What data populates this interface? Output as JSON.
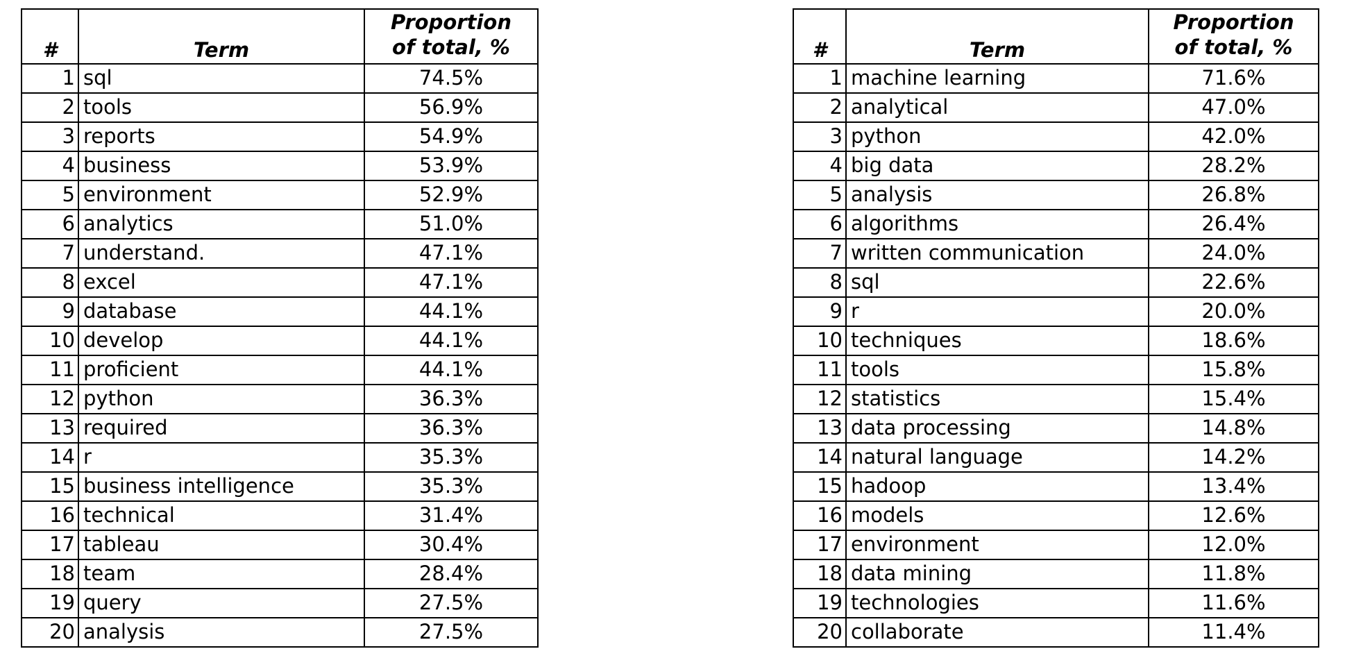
{
  "tables": [
    {
      "headers": {
        "number": "#",
        "term": "Term",
        "proportion_line1": "Proportion",
        "proportion_line2": "of total, %"
      },
      "rows": [
        {
          "num": "1",
          "term": "sql",
          "prop": "74.5%"
        },
        {
          "num": "2",
          "term": "tools",
          "prop": "56.9%"
        },
        {
          "num": "3",
          "term": "reports",
          "prop": "54.9%"
        },
        {
          "num": "4",
          "term": "business",
          "prop": "53.9%"
        },
        {
          "num": "5",
          "term": "environment",
          "prop": "52.9%"
        },
        {
          "num": "6",
          "term": "analytics",
          "prop": "51.0%"
        },
        {
          "num": "7",
          "term": "understand.",
          "prop": "47.1%"
        },
        {
          "num": "8",
          "term": "excel",
          "prop": "47.1%"
        },
        {
          "num": "9",
          "term": "database",
          "prop": "44.1%"
        },
        {
          "num": "10",
          "term": "develop",
          "prop": "44.1%"
        },
        {
          "num": "11",
          "term": "proficient",
          "prop": "44.1%"
        },
        {
          "num": "12",
          "term": "python",
          "prop": "36.3%"
        },
        {
          "num": "13",
          "term": "required",
          "prop": "36.3%"
        },
        {
          "num": "14",
          "term": "r",
          "prop": "35.3%"
        },
        {
          "num": "15",
          "term": "business intelligence",
          "prop": "35.3%"
        },
        {
          "num": "16",
          "term": "technical",
          "prop": "31.4%"
        },
        {
          "num": "17",
          "term": "tableau",
          "prop": "30.4%"
        },
        {
          "num": "18",
          "term": "team",
          "prop": "28.4%"
        },
        {
          "num": "19",
          "term": "query",
          "prop": "27.5%"
        },
        {
          "num": "20",
          "term": "analysis",
          "prop": "27.5%"
        }
      ]
    },
    {
      "headers": {
        "number": "#",
        "term": "Term",
        "proportion_line1": "Proportion",
        "proportion_line2": "of total, %"
      },
      "rows": [
        {
          "num": "1",
          "term": "machine learning",
          "prop": "71.6%"
        },
        {
          "num": "2",
          "term": "analytical",
          "prop": "47.0%"
        },
        {
          "num": "3",
          "term": "python",
          "prop": "42.0%"
        },
        {
          "num": "4",
          "term": "big data",
          "prop": "28.2%"
        },
        {
          "num": "5",
          "term": "analysis",
          "prop": "26.8%"
        },
        {
          "num": "6",
          "term": "algorithms",
          "prop": "26.4%"
        },
        {
          "num": "7",
          "term": "written communication",
          "prop": "24.0%"
        },
        {
          "num": "8",
          "term": "sql",
          "prop": "22.6%"
        },
        {
          "num": "9",
          "term": "r",
          "prop": "20.0%"
        },
        {
          "num": "10",
          "term": "techniques",
          "prop": "18.6%"
        },
        {
          "num": "11",
          "term": "tools",
          "prop": "15.8%"
        },
        {
          "num": "12",
          "term": "statistics",
          "prop": "15.4%"
        },
        {
          "num": "13",
          "term": "data processing",
          "prop": "14.8%"
        },
        {
          "num": "14",
          "term": "natural language",
          "prop": "14.2%"
        },
        {
          "num": "15",
          "term": "hadoop",
          "prop": "13.4%"
        },
        {
          "num": "16",
          "term": "models",
          "prop": "12.6%"
        },
        {
          "num": "17",
          "term": "environment",
          "prop": "12.0%"
        },
        {
          "num": "18",
          "term": "data mining",
          "prop": "11.8%"
        },
        {
          "num": "19",
          "term": "technologies",
          "prop": "11.6%"
        },
        {
          "num": "20",
          "term": "collaborate",
          "prop": "11.4%"
        }
      ]
    }
  ]
}
